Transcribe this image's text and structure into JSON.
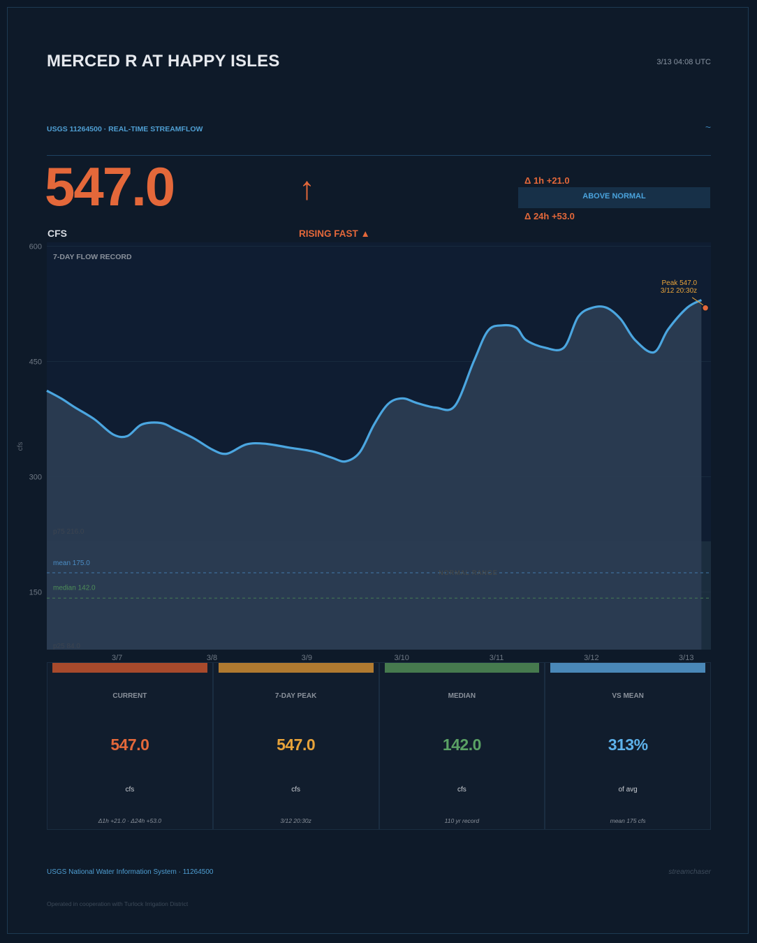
{
  "header": {
    "station_name": "MERCED R AT HAPPY ISLES",
    "timestamp": "3/13  04:08 UTC",
    "subtitle": "USGS 11264500  ·  REAL-TIME STREAMFLOW",
    "tilde_icon": "~"
  },
  "reading": {
    "value": "547.0",
    "unit": "CFS",
    "trend_arrow": "↑",
    "trend_label": "RISING FAST ▲",
    "delta_1h": "Δ 1h  +21.0",
    "delta_24h": "Δ 24h  +53.0",
    "status": "ABOVE NORMAL"
  },
  "colors": {
    "accent": "#e4683a",
    "line": "#4ba6e0",
    "peak": "#e8a33a",
    "median": "#4e8e58",
    "mean": "#4b8cc4"
  },
  "chart_data": {
    "type": "line",
    "title": "7-DAY FLOW RECORD",
    "ylabel": "cfs",
    "xlabel": "",
    "ylim": [
      75,
      605
    ],
    "xlim": [
      0,
      7
    ],
    "ytick_labels": [
      "600",
      "450",
      "300",
      "150"
    ],
    "ytick_values": [
      600,
      450,
      300,
      150
    ],
    "xtick_labels": [
      "3/7",
      "3/8",
      "3/9",
      "3/10",
      "3/11",
      "3/12",
      "3/13"
    ],
    "xtick_positions": [
      0.77,
      1.77,
      2.77,
      3.77,
      4.77,
      5.77,
      6.77
    ],
    "series": [
      {
        "x": [
          0,
          0.15,
          0.3,
          0.5,
          0.7,
          0.85,
          1.0,
          1.2,
          1.35,
          1.55,
          1.75,
          1.9,
          2.1,
          2.3,
          2.55,
          2.8,
          3.0,
          3.15,
          3.3,
          3.45,
          3.6,
          3.75,
          3.9,
          4.1,
          4.3,
          4.5,
          4.65,
          4.8,
          4.95,
          5.05,
          5.25,
          5.45,
          5.6,
          5.75,
          5.9,
          6.05,
          6.2,
          6.4,
          6.55,
          6.75,
          6.9
        ],
        "y": [
          412,
          402,
          390,
          375,
          355,
          353,
          368,
          370,
          362,
          350,
          335,
          330,
          342,
          343,
          338,
          333,
          325,
          320,
          332,
          368,
          395,
          402,
          396,
          390,
          392,
          450,
          490,
          497,
          494,
          478,
          468,
          468,
          508,
          520,
          520,
          505,
          478,
          462,
          492,
          520,
          530
        ]
      }
    ],
    "reference_lines": [
      {
        "label": "mean  175.0",
        "value": 175
      },
      {
        "label": "median  142.0",
        "value": 142
      }
    ],
    "band": {
      "upper_label": "p75  216.0",
      "upper": 216,
      "lower_label": "p25  84.0",
      "lower": 84
    },
    "band_center_label": "NORMAL RANGE",
    "peak": {
      "label": "Peak  547.0",
      "time": "3/12  20:30z",
      "x": 6.92,
      "y": 547
    }
  },
  "tiles": [
    {
      "label": "CURRENT",
      "value": "547.0",
      "unit": "cfs",
      "note": "Δ1h +21.0  ·  Δ24h +53.0",
      "color": "#e4683a",
      "bar": "#a84a2c"
    },
    {
      "label": "7-DAY PEAK",
      "value": "547.0",
      "unit": "cfs",
      "note": "3/12 20:30z",
      "color": "#e8a33a",
      "bar": "#b07a30"
    },
    {
      "label": "MEDIAN",
      "value": "142.0",
      "unit": "cfs",
      "note": "110 yr record",
      "color": "#5aa164",
      "bar": "#467a4e"
    },
    {
      "label": "VS MEAN",
      "value": "313%",
      "unit": "of avg",
      "note": "mean 175 cfs",
      "color": "#5db1ea",
      "bar": "#4a88b8"
    }
  ],
  "footer": {
    "source": "USGS National Water Information System  ·  11264500",
    "brand": "streamchaser",
    "cooperation": "Operated in cooperation with Turlock Irrigation District"
  }
}
